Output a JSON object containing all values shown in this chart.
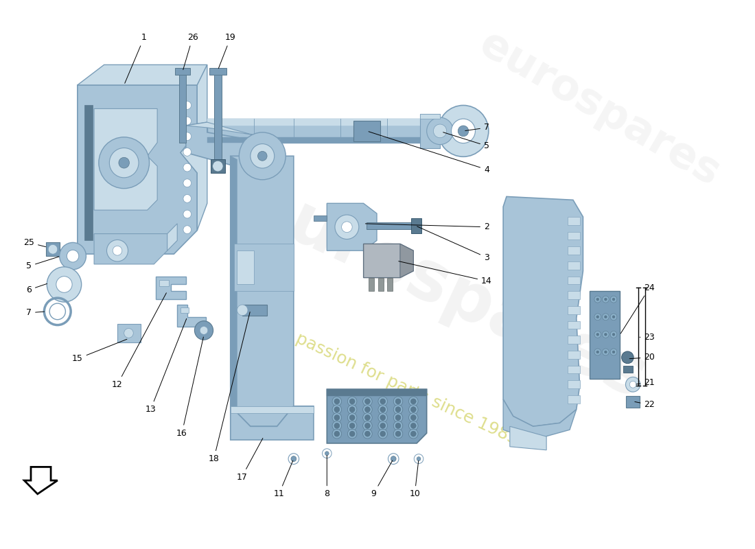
{
  "bg_color": "#ffffff",
  "pc": "#a8c4d8",
  "pcd": "#7a9db8",
  "pcl": "#c8dce8",
  "pce": "#5a7a90",
  "label_fs": 9,
  "wm1_text": "eurospares",
  "wm2_text": "a passion for parts since 1985",
  "wm1_color": "#d8d8d8",
  "wm2_color": "#c8c840",
  "arrow_color": "#000000",
  "fig_w": 11.0,
  "fig_h": 8.0,
  "dpi": 100
}
